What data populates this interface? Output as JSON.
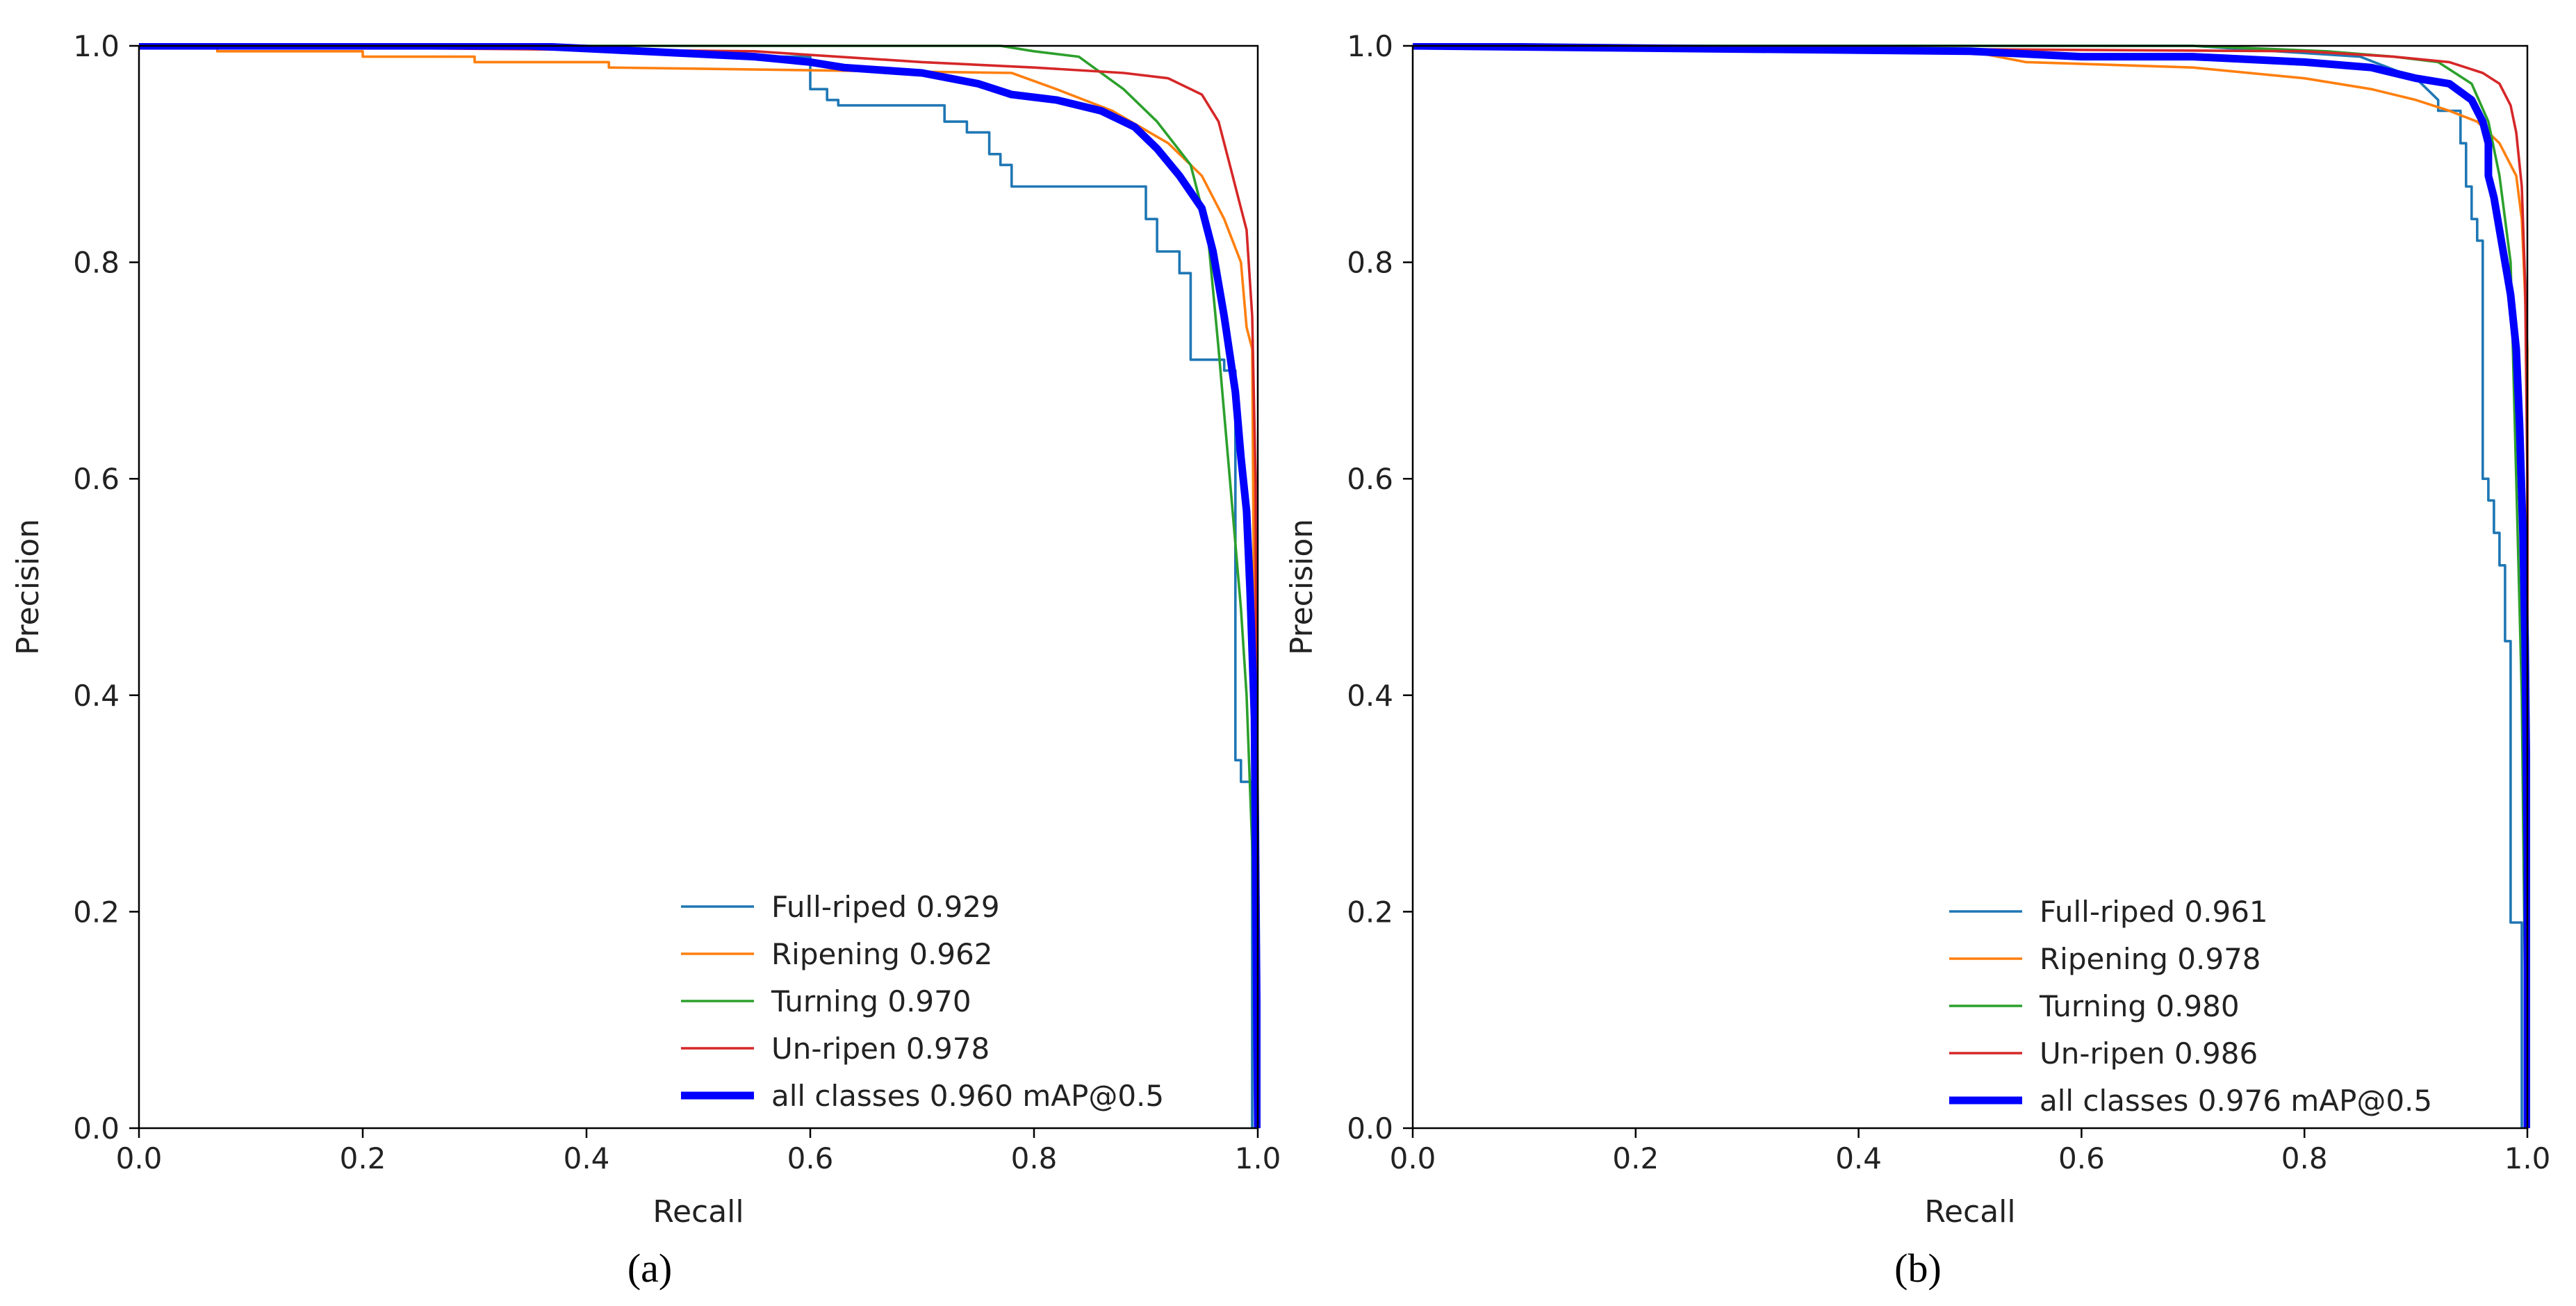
{
  "chart_data": [
    {
      "type": "line",
      "panel_label": "(a)",
      "xlabel": "Recall",
      "ylabel": "Precision",
      "xlim": [
        0,
        1
      ],
      "ylim": [
        0,
        1
      ],
      "xticks": [
        "0.0",
        "0.2",
        "0.4",
        "0.6",
        "0.8",
        "1.0"
      ],
      "yticks": [
        "0.0",
        "0.2",
        "0.4",
        "0.6",
        "0.8",
        "1.0"
      ],
      "grid": false,
      "legend_position": "lower-right",
      "series": [
        {
          "name": "Full-riped 0.929",
          "color": "#1f77b4",
          "points": [
            [
              0,
              1.0
            ],
            [
              0.3,
              1.0
            ],
            [
              0.55,
              0.99
            ],
            [
              0.6,
              0.99
            ],
            [
              0.6,
              0.96
            ],
            [
              0.615,
              0.96
            ],
            [
              0.615,
              0.95
            ],
            [
              0.625,
              0.95
            ],
            [
              0.625,
              0.945
            ],
            [
              0.72,
              0.945
            ],
            [
              0.72,
              0.93
            ],
            [
              0.74,
              0.93
            ],
            [
              0.74,
              0.92
            ],
            [
              0.76,
              0.92
            ],
            [
              0.76,
              0.9
            ],
            [
              0.77,
              0.9
            ],
            [
              0.77,
              0.89
            ],
            [
              0.78,
              0.89
            ],
            [
              0.78,
              0.87
            ],
            [
              0.9,
              0.87
            ],
            [
              0.9,
              0.84
            ],
            [
              0.91,
              0.84
            ],
            [
              0.91,
              0.81
            ],
            [
              0.93,
              0.81
            ],
            [
              0.93,
              0.79
            ],
            [
              0.94,
              0.79
            ],
            [
              0.94,
              0.71
            ],
            [
              0.97,
              0.71
            ],
            [
              0.97,
              0.7
            ],
            [
              0.98,
              0.7
            ],
            [
              0.98,
              0.57
            ],
            [
              0.98,
              0.57
            ],
            [
              0.98,
              0.34
            ],
            [
              0.985,
              0.34
            ],
            [
              0.985,
              0.32
            ],
            [
              0.99,
              0.32
            ],
            [
              0.995,
              0.32
            ],
            [
              0.995,
              0.0
            ]
          ]
        },
        {
          "name": "Ripening 0.962",
          "color": "#ff7f0e",
          "points": [
            [
              0,
              1.0
            ],
            [
              0.07,
              1.0
            ],
            [
              0.07,
              0.995
            ],
            [
              0.2,
              0.995
            ],
            [
              0.2,
              0.99
            ],
            [
              0.3,
              0.99
            ],
            [
              0.3,
              0.985
            ],
            [
              0.42,
              0.985
            ],
            [
              0.42,
              0.98
            ],
            [
              0.78,
              0.975
            ],
            [
              0.82,
              0.96
            ],
            [
              0.87,
              0.94
            ],
            [
              0.92,
              0.91
            ],
            [
              0.95,
              0.88
            ],
            [
              0.97,
              0.84
            ],
            [
              0.985,
              0.8
            ],
            [
              0.99,
              0.74
            ],
            [
              0.995,
              0.72
            ],
            [
              1.0,
              0.0
            ]
          ]
        },
        {
          "name": "Turning 0.970",
          "color": "#2ca02c",
          "points": [
            [
              0,
              1.0
            ],
            [
              0.77,
              1.0
            ],
            [
              0.8,
              0.995
            ],
            [
              0.84,
              0.99
            ],
            [
              0.88,
              0.96
            ],
            [
              0.91,
              0.93
            ],
            [
              0.94,
              0.89
            ],
            [
              0.955,
              0.83
            ],
            [
              0.965,
              0.72
            ],
            [
              0.975,
              0.6
            ],
            [
              0.985,
              0.48
            ],
            [
              0.99,
              0.4
            ],
            [
              0.995,
              0.26
            ],
            [
              0.997,
              0.15
            ],
            [
              1.0,
              0.0
            ]
          ]
        },
        {
          "name": "Un-ripen 0.978",
          "color": "#d62728",
          "points": [
            [
              0,
              1.0
            ],
            [
              0.55,
              0.995
            ],
            [
              0.7,
              0.985
            ],
            [
              0.8,
              0.98
            ],
            [
              0.88,
              0.975
            ],
            [
              0.92,
              0.97
            ],
            [
              0.95,
              0.955
            ],
            [
              0.965,
              0.93
            ],
            [
              0.975,
              0.89
            ],
            [
              0.985,
              0.85
            ],
            [
              0.99,
              0.83
            ],
            [
              0.995,
              0.75
            ],
            [
              0.998,
              0.6
            ],
            [
              1.0,
              0.0
            ]
          ]
        },
        {
          "name": "all classes 0.960 mAP@0.5",
          "color": "#0000ff",
          "bold": true,
          "points": [
            [
              0,
              1.0
            ],
            [
              0.35,
              1.0
            ],
            [
              0.45,
              0.995
            ],
            [
              0.55,
              0.99
            ],
            [
              0.6,
              0.985
            ],
            [
              0.63,
              0.98
            ],
            [
              0.7,
              0.975
            ],
            [
              0.75,
              0.965
            ],
            [
              0.78,
              0.955
            ],
            [
              0.82,
              0.95
            ],
            [
              0.86,
              0.94
            ],
            [
              0.89,
              0.925
            ],
            [
              0.91,
              0.905
            ],
            [
              0.93,
              0.88
            ],
            [
              0.95,
              0.85
            ],
            [
              0.96,
              0.81
            ],
            [
              0.97,
              0.75
            ],
            [
              0.98,
              0.68
            ],
            [
              0.985,
              0.62
            ],
            [
              0.99,
              0.57
            ],
            [
              0.993,
              0.5
            ],
            [
              0.997,
              0.38
            ],
            [
              1.0,
              0.0
            ]
          ]
        }
      ]
    },
    {
      "type": "line",
      "panel_label": "(b)",
      "xlabel": "Recall",
      "ylabel": "Precision",
      "xlim": [
        0,
        1
      ],
      "ylim": [
        0,
        1
      ],
      "xticks": [
        "0.0",
        "0.2",
        "0.4",
        "0.6",
        "0.8",
        "1.0"
      ],
      "yticks": [
        "0.0",
        "0.2",
        "0.4",
        "0.6",
        "0.8",
        "1.0"
      ],
      "grid": false,
      "legend_position": "lower-right",
      "series": [
        {
          "name": "Full-riped 0.961",
          "color": "#1f77b4",
          "points": [
            [
              0,
              1.0
            ],
            [
              0.7,
              1.0
            ],
            [
              0.85,
              0.99
            ],
            [
              0.9,
              0.97
            ],
            [
              0.92,
              0.95
            ],
            [
              0.92,
              0.94
            ],
            [
              0.94,
              0.94
            ],
            [
              0.94,
              0.91
            ],
            [
              0.945,
              0.91
            ],
            [
              0.945,
              0.87
            ],
            [
              0.95,
              0.87
            ],
            [
              0.95,
              0.84
            ],
            [
              0.955,
              0.84
            ],
            [
              0.955,
              0.82
            ],
            [
              0.96,
              0.82
            ],
            [
              0.96,
              0.6
            ],
            [
              0.965,
              0.6
            ],
            [
              0.965,
              0.58
            ],
            [
              0.97,
              0.58
            ],
            [
              0.97,
              0.55
            ],
            [
              0.975,
              0.55
            ],
            [
              0.975,
              0.52
            ],
            [
              0.98,
              0.52
            ],
            [
              0.98,
              0.45
            ],
            [
              0.985,
              0.45
            ],
            [
              0.985,
              0.19
            ],
            [
              0.995,
              0.19
            ],
            [
              0.995,
              0.0
            ]
          ]
        },
        {
          "name": "Ripening 0.978",
          "color": "#ff7f0e",
          "points": [
            [
              0,
              1.0
            ],
            [
              0.5,
              0.995
            ],
            [
              0.55,
              0.985
            ],
            [
              0.7,
              0.98
            ],
            [
              0.8,
              0.97
            ],
            [
              0.86,
              0.96
            ],
            [
              0.9,
              0.95
            ],
            [
              0.93,
              0.94
            ],
            [
              0.955,
              0.93
            ],
            [
              0.975,
              0.91
            ],
            [
              0.99,
              0.88
            ],
            [
              0.995,
              0.84
            ],
            [
              1.0,
              0.72
            ],
            [
              1.0,
              0.0
            ]
          ]
        },
        {
          "name": "Turning 0.980",
          "color": "#2ca02c",
          "points": [
            [
              0,
              1.0
            ],
            [
              0.7,
              1.0
            ],
            [
              0.82,
              0.995
            ],
            [
              0.88,
              0.99
            ],
            [
              0.92,
              0.985
            ],
            [
              0.95,
              0.965
            ],
            [
              0.965,
              0.93
            ],
            [
              0.975,
              0.88
            ],
            [
              0.985,
              0.8
            ],
            [
              0.99,
              0.6
            ],
            [
              0.995,
              0.4
            ],
            [
              0.998,
              0.12
            ],
            [
              1.0,
              0.0
            ]
          ]
        },
        {
          "name": "Un-ripen 0.986",
          "color": "#d62728",
          "points": [
            [
              0,
              1.0
            ],
            [
              0.8,
              0.995
            ],
            [
              0.88,
              0.99
            ],
            [
              0.93,
              0.985
            ],
            [
              0.96,
              0.975
            ],
            [
              0.975,
              0.965
            ],
            [
              0.985,
              0.945
            ],
            [
              0.99,
              0.92
            ],
            [
              0.995,
              0.87
            ],
            [
              0.998,
              0.78
            ],
            [
              1.0,
              0.6
            ],
            [
              1.0,
              0.0
            ]
          ]
        },
        {
          "name": "all classes 0.976 mAP@0.5",
          "color": "#0000ff",
          "bold": true,
          "points": [
            [
              0,
              1.0
            ],
            [
              0.5,
              0.995
            ],
            [
              0.6,
              0.99
            ],
            [
              0.7,
              0.99
            ],
            [
              0.8,
              0.985
            ],
            [
              0.86,
              0.98
            ],
            [
              0.9,
              0.97
            ],
            [
              0.93,
              0.965
            ],
            [
              0.95,
              0.95
            ],
            [
              0.96,
              0.93
            ],
            [
              0.965,
              0.91
            ],
            [
              0.965,
              0.88
            ],
            [
              0.97,
              0.86
            ],
            [
              0.975,
              0.83
            ],
            [
              0.98,
              0.8
            ],
            [
              0.985,
              0.77
            ],
            [
              0.99,
              0.72
            ],
            [
              0.993,
              0.65
            ],
            [
              0.996,
              0.55
            ],
            [
              0.998,
              0.45
            ],
            [
              1.0,
              0.25
            ],
            [
              1.0,
              0.0
            ]
          ]
        }
      ]
    }
  ]
}
